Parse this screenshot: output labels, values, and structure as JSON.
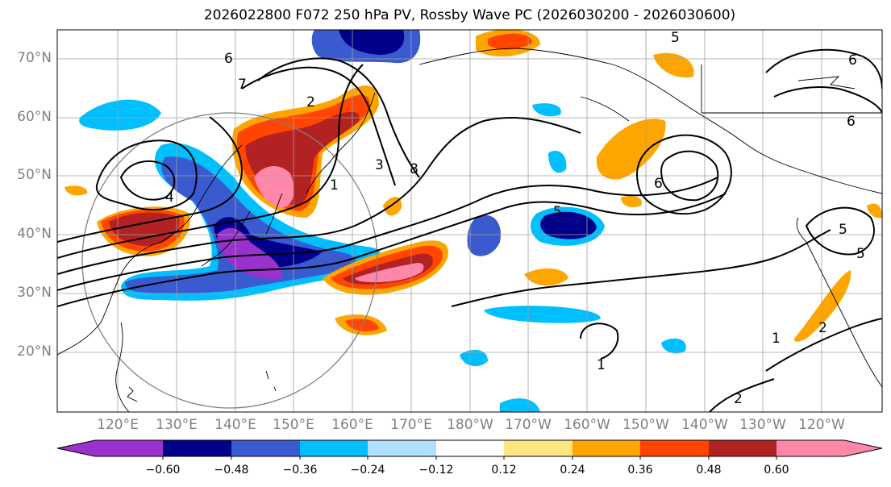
{
  "title": "2026022800 F072 250 hPa PV, Rossby Wave PC (2026030200 - 2026030600)",
  "lat_labels": [
    "70°N",
    "60°N",
    "50°N",
    "40°N",
    "30°N",
    "20°N"
  ],
  "lon_labels": [
    "120°E",
    "130°E",
    "140°E",
    "150°E",
    "160°E",
    "170°E",
    "180°W",
    "170°W",
    "160°W",
    "150°W",
    "140°W",
    "130°W",
    "120°W"
  ],
  "colorbar": {
    "ticks": [
      "−0.60",
      "−0.48",
      "−0.36",
      "−0.24",
      "−0.12",
      "0.12",
      "0.24",
      "0.36",
      "0.48",
      "0.60"
    ],
    "colors": [
      "#9932cc",
      "#00008b",
      "#3a5bd0",
      "#00bfff",
      "#b0e0ff",
      "#ffffff",
      "#ffe680",
      "#ffa500",
      "#ff4500",
      "#b22222",
      "#ff88aa"
    ]
  },
  "contour_labels": [
    "6",
    "7",
    "8",
    "5",
    "4",
    "1",
    "2",
    "3",
    "6",
    "5",
    "6",
    "1",
    "2",
    "1",
    "2",
    "5",
    "6",
    "5"
  ]
}
